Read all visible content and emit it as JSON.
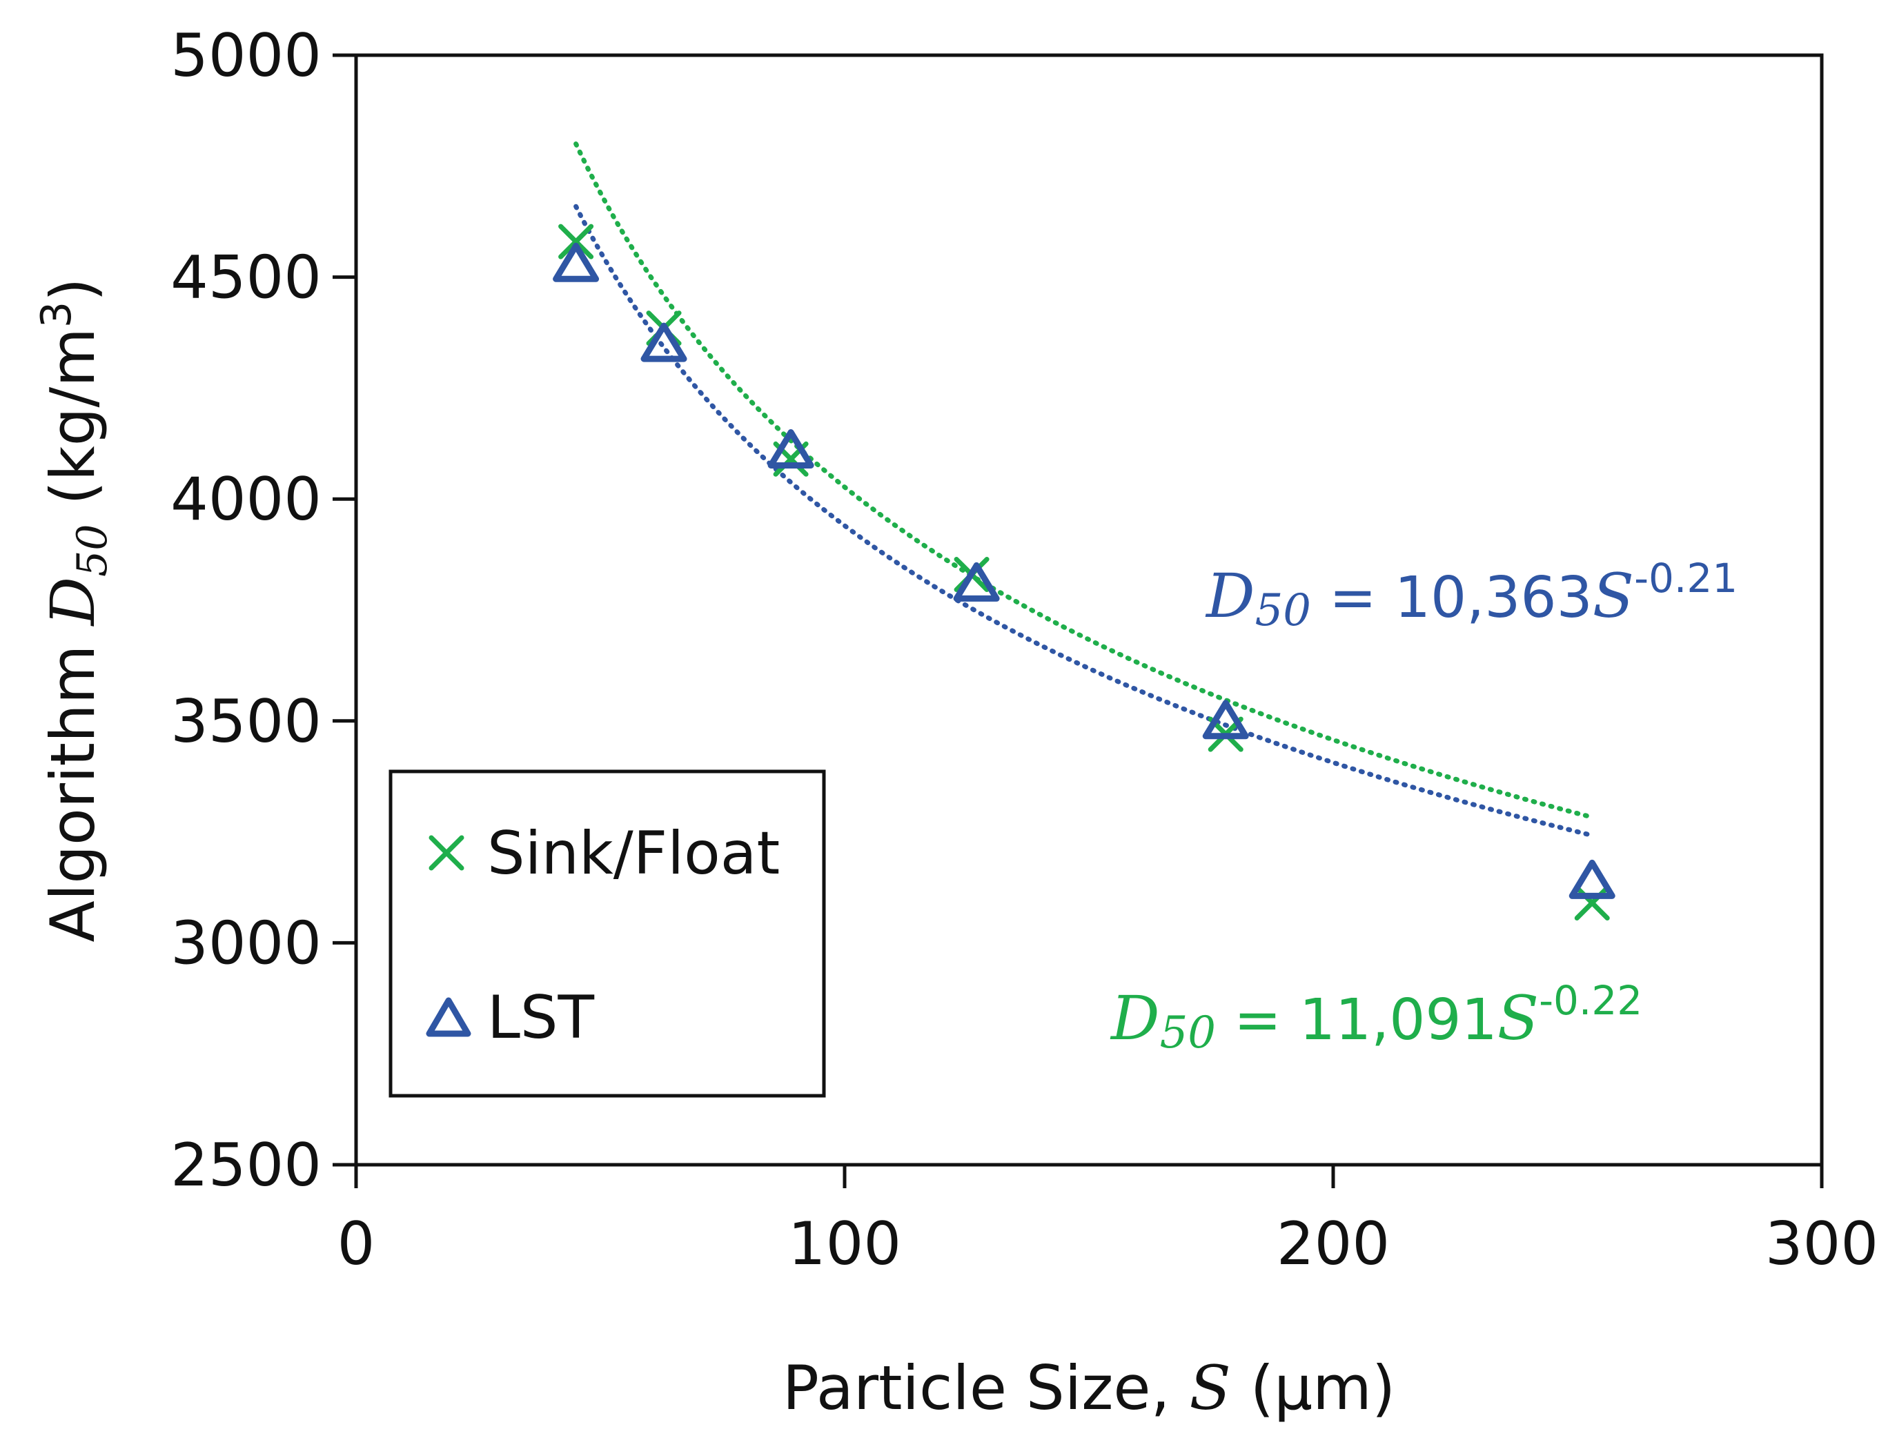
{
  "chart_data": {
    "type": "scatter",
    "xlabel": {
      "prefix": "Particle Size, ",
      "variable": "S",
      "suffix": " (µm)"
    },
    "ylabel": {
      "prefix": "Algorithm ",
      "variable": "D",
      "subscript": "50",
      "unit_prefix": " (kg/m",
      "unit_superscript": "3",
      "unit_suffix": ")"
    },
    "xlim": [
      0,
      300
    ],
    "ylim": [
      2500,
      5000
    ],
    "x_ticks": [
      0,
      100,
      200,
      300
    ],
    "y_ticks": [
      2500,
      3000,
      3500,
      4000,
      4500,
      5000
    ],
    "grid": false,
    "legend_position": "bottom-left",
    "series": [
      {
        "name": "Sink/Float",
        "marker": "x",
        "color": "#1fae4b",
        "x": [
          45,
          63,
          89,
          126,
          178,
          253
        ],
        "y": [
          4580,
          4385,
          4090,
          3830,
          3470,
          3090
        ],
        "trendline": {
          "type": "power",
          "coefficient": 11091,
          "exponent": -0.22,
          "x_range": [
            45,
            253
          ],
          "label": {
            "variable": "D",
            "subscript": "50",
            "middle": " = 11,091",
            "base": "S",
            "exponent": "-0.22"
          }
        }
      },
      {
        "name": "LST",
        "marker": "triangle",
        "color": "#2f56a4",
        "x": [
          45,
          63,
          89,
          127,
          178,
          253
        ],
        "y": [
          4530,
          4350,
          4110,
          3810,
          3500,
          3140
        ],
        "trendline": {
          "type": "power",
          "coefficient": 10363,
          "exponent": -0.21,
          "x_range": [
            45,
            253
          ],
          "label": {
            "variable": "D",
            "subscript": "50",
            "middle": " = 10,363",
            "base": "S",
            "exponent": "-0.21"
          }
        }
      }
    ]
  }
}
